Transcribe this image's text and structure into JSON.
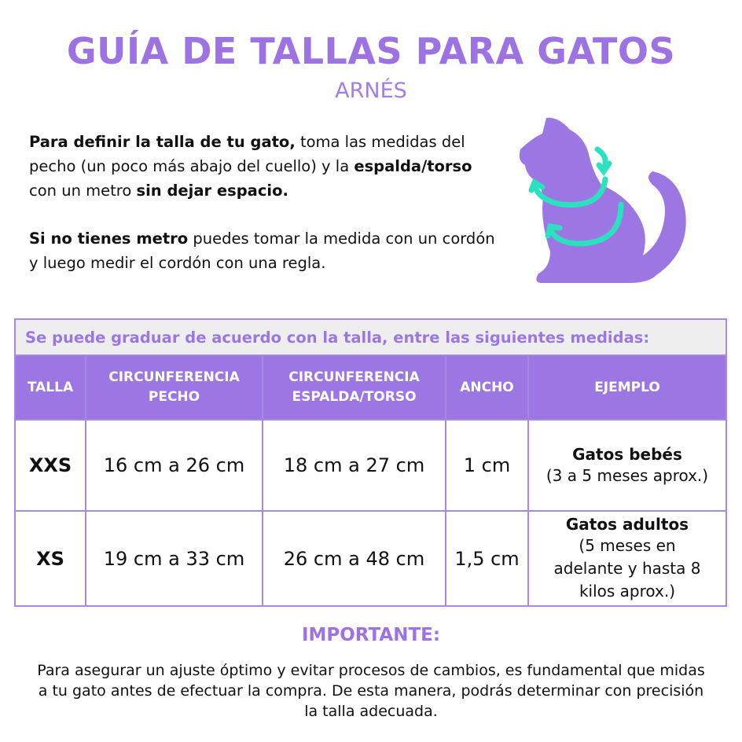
{
  "title": "GUÍA DE TALLAS PARA GATOS",
  "subtitle": "ARNÉS",
  "intro": {
    "p1_bold1": "Para definir la talla de  tu gato,",
    "p1_text1": " toma las medidas del pecho (un poco más abajo del cuello) y la ",
    "p1_bold2": "espalda/torso",
    "p1_text2": " con un metro ",
    "p1_bold3": "sin dejar espacio.",
    "p2_bold": "Si no tienes metro",
    "p2_text": " puedes tomar la medida con un cordón y luego medir el cordón con una regla."
  },
  "illustration": {
    "icon": "cat-silhouette-with-measuring-arrows",
    "color": "#9c77e3",
    "arrow_color": "#2de0c0"
  },
  "table": {
    "caption": "Se puede graduar de acuerdo con la talla, entre las siguientes medidas:",
    "headers": [
      {
        "l1": "TALLA",
        "l2": ""
      },
      {
        "l1": "CIRCUNFERENCIA",
        "l2": "PECHO"
      },
      {
        "l1": "CIRCUNFERENCIA",
        "l2": "ESPALDA/TORSO"
      },
      {
        "l1": "ANCHO",
        "l2": ""
      },
      {
        "l1": "EJEMPLO",
        "l2": ""
      }
    ],
    "rows": [
      {
        "talla": "XXS",
        "pecho": "16 cm a 26 cm",
        "espalda": "18 cm a 27 cm",
        "ancho": "1 cm",
        "ejemplo_title": "Gatos bebés",
        "ejemplo_text": "(3 a 5 meses aprox.)"
      },
      {
        "talla": "XS",
        "pecho": "19 cm a 33 cm",
        "espalda": "26 cm a 48 cm",
        "ancho": "1,5 cm",
        "ejemplo_title": "Gatos adultos",
        "ejemplo_text": "(5 meses en adelante y hasta 8 kilos aprox.)"
      }
    ]
  },
  "important": {
    "heading": "IMPORTANTE:",
    "text": "Para asegurar un ajuste óptimo y evitar procesos de cambios, es fundamental que midas a tu gato antes de efectuar la compra. De esta manera, podrás determinar con precisión la talla adecuada."
  },
  "colors": {
    "accent": "#9c77e3",
    "caption_bg": "#eeeeee",
    "arrow": "#2de0c0"
  }
}
